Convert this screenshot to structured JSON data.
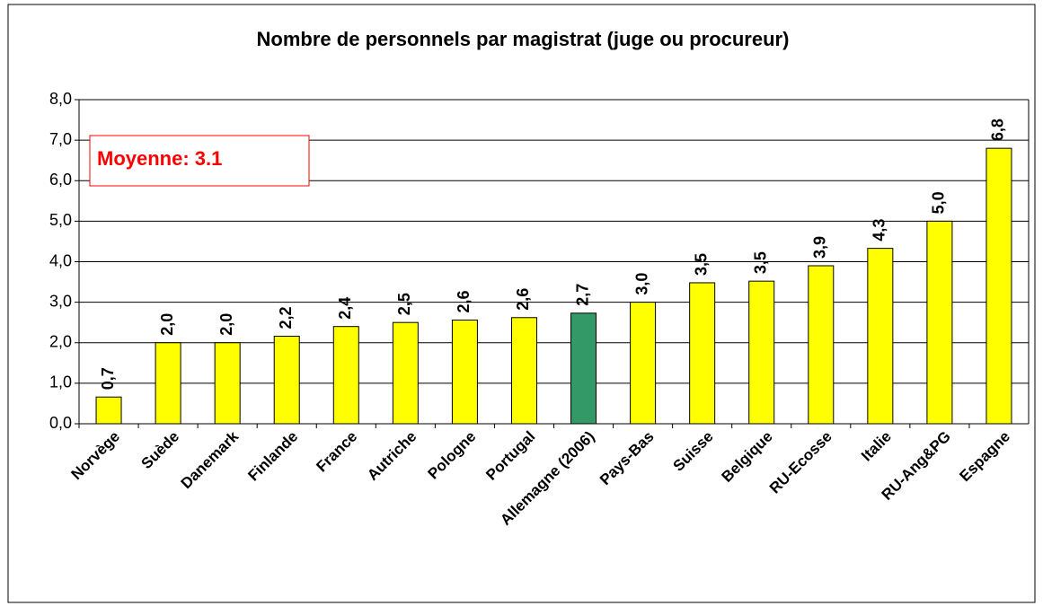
{
  "chart_data": {
    "type": "bar",
    "title": "Nombre de personnels par magistrat (juge ou procureur)",
    "annotation": "Moyenne: 3.1",
    "categories": [
      "Norvège",
      "Suède",
      "Danemark",
      "Finlande",
      "France",
      "Autriche",
      "Pologne",
      "Portugal",
      "Allemagne (2006)",
      "Pays-Bas",
      "Suisse",
      "Belgique",
      "RU-Ecosse",
      "Italie",
      "RU-Ang&PG",
      "Espagne"
    ],
    "values": [
      0.66,
      2.0,
      2.0,
      2.16,
      2.4,
      2.5,
      2.56,
      2.62,
      2.73,
      3.0,
      3.48,
      3.52,
      3.9,
      4.33,
      5.0,
      6.8
    ],
    "value_labels": [
      "0,7",
      "2,0",
      "2,0",
      "2,2",
      "2,4",
      "2,5",
      "2,6",
      "2,6",
      "2,7",
      "3,0",
      "3,5",
      "3,5",
      "3,9",
      "4,3",
      "5,0",
      "6,8"
    ],
    "colors": [
      "#ffff00",
      "#ffff00",
      "#ffff00",
      "#ffff00",
      "#ffff00",
      "#ffff00",
      "#ffff00",
      "#ffff00",
      "#339966",
      "#ffff00",
      "#ffff00",
      "#ffff00",
      "#ffff00",
      "#ffff00",
      "#ffff00",
      "#ffff00"
    ],
    "ylim": [
      0,
      8
    ],
    "yticks": [
      {
        "value": 0,
        "label": "0,0"
      },
      {
        "value": 1,
        "label": "1,0"
      },
      {
        "value": 2,
        "label": "2,0"
      },
      {
        "value": 3,
        "label": "3,0"
      },
      {
        "value": 4,
        "label": "4,0"
      },
      {
        "value": 5,
        "label": "5,0"
      },
      {
        "value": 6,
        "label": "6,0"
      },
      {
        "value": 7,
        "label": "7,0"
      },
      {
        "value": 8,
        "label": "8,0"
      }
    ],
    "grid": true
  }
}
